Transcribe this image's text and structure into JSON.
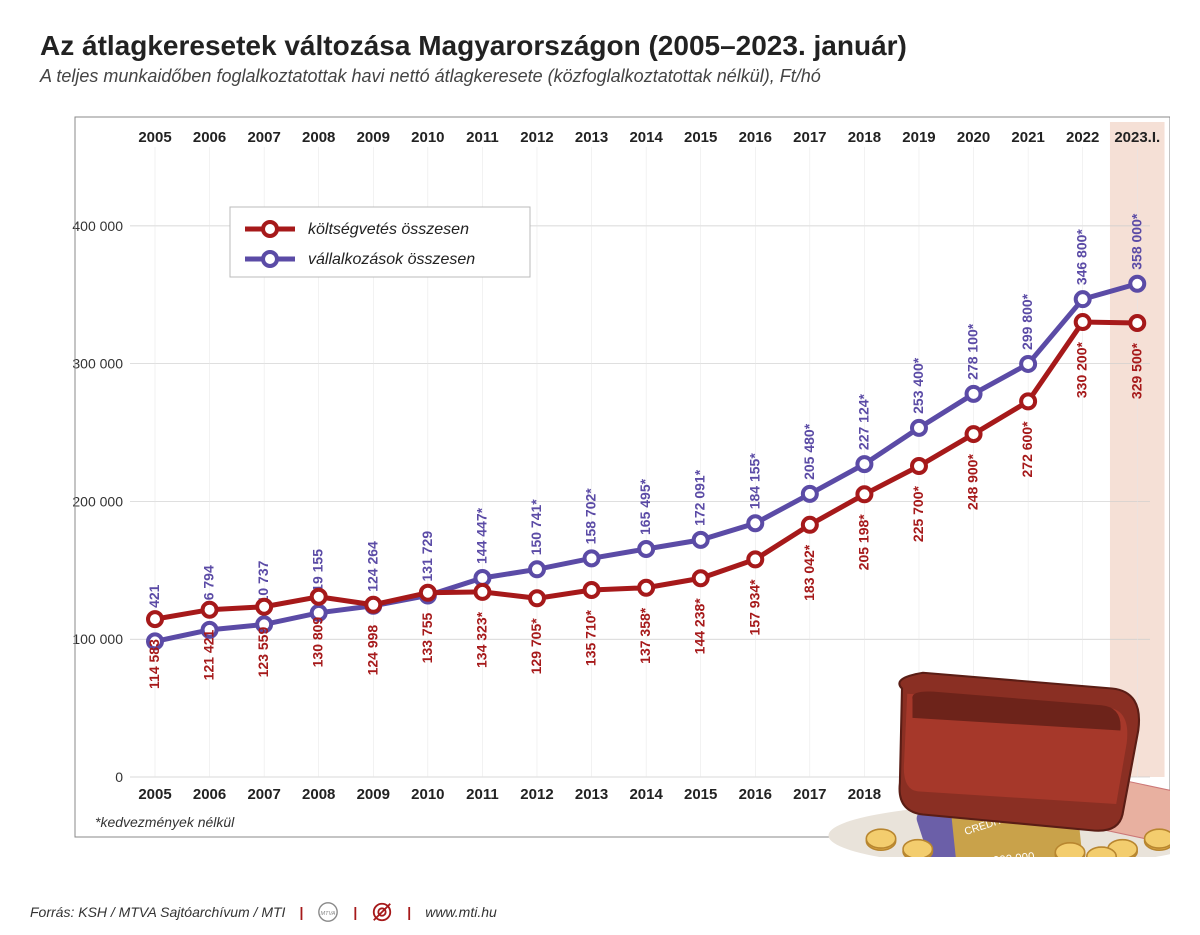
{
  "title": "Az átlagkeresetek változása Magyarországon (2005–2023. január)",
  "subtitle": "A teljes munkaidőben foglalkoztatottak havi nettó átlagkeresete (közfoglalkoztatottak nélkül), Ft/hó",
  "years": [
    "2005",
    "2006",
    "2007",
    "2008",
    "2009",
    "2010",
    "2011",
    "2012",
    "2013",
    "2014",
    "2015",
    "2016",
    "2017",
    "2018",
    "2019",
    "2020",
    "2021",
    "2022",
    "2023.I."
  ],
  "series1": {
    "name": "költségvetés összesen",
    "color": "#a6191a",
    "values": [
      114583,
      121421,
      123559,
      130809,
      124998,
      133755,
      134323,
      129705,
      135710,
      137358,
      144238,
      157934,
      183042,
      205198,
      225700,
      248900,
      272600,
      330200,
      329500
    ],
    "labels": [
      "114 583",
      "121 421",
      "123 559",
      "130 809",
      "124 998",
      "133 755",
      "134 323*",
      "129 705*",
      "135 710*",
      "137 358*",
      "144 238*",
      "157 934*",
      "183 042*",
      "205 198*",
      "225 700*",
      "248 900*",
      "272 600*",
      "330 200*",
      "329 500*"
    ]
  },
  "series2": {
    "name": "vállalkozások összesen",
    "color": "#5b4ba6",
    "values": [
      98421,
      106794,
      110737,
      119155,
      124264,
      131729,
      144447,
      150741,
      158702,
      165495,
      172091,
      184155,
      205480,
      227124,
      253400,
      278100,
      299800,
      346800,
      358000
    ],
    "labels": [
      "98 421",
      "106 794",
      "110 737",
      "119 155",
      "124 264",
      "131 729",
      "144 447*",
      "150 741*",
      "158 702*",
      "165 495*",
      "172 091*",
      "184 155*",
      "205 480*",
      "227 124*",
      "253 400*",
      "278 100*",
      "299 800*",
      "346 800*",
      "358 000*"
    ]
  },
  "yaxis": {
    "min": 0,
    "max": 450000,
    "ticks": [
      0,
      100000,
      200000,
      300000,
      400000
    ],
    "tick_labels": [
      "0",
      "100 000",
      "200 000",
      "300 000",
      "400 000"
    ]
  },
  "highlight_band": {
    "year_index": 18,
    "color": "#f5e0d6"
  },
  "note": "*kedvezmények nélkül",
  "legend": {
    "bg": "#ffffff",
    "border": "#bbbbbb"
  },
  "styling": {
    "line_width": 5,
    "marker_radius": 7,
    "marker_stroke_width": 4,
    "marker_fill": "#ffffff",
    "grid_color": "#cccccc",
    "background_color": "#ffffff",
    "title_fontsize": 28,
    "subtitle_fontsize": 18,
    "axis_fontsize": 14,
    "label_fontsize": 14
  },
  "footer": {
    "source": "Forrás: KSH / MTVA Sajtóarchívum / MTI",
    "url": "www.mti.hu"
  },
  "chart_type": "line"
}
